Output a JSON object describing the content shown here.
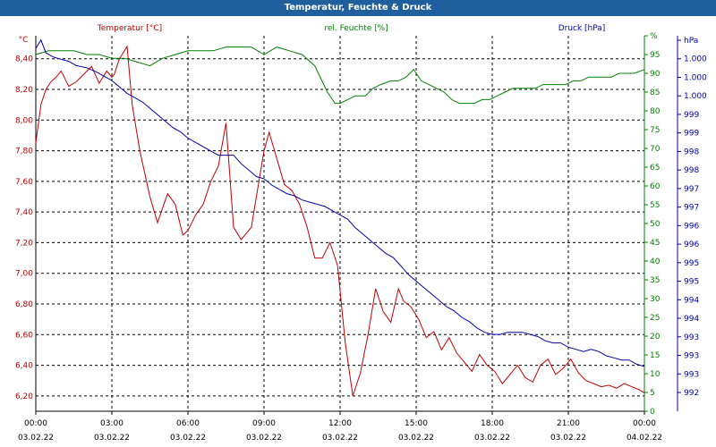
{
  "window": {
    "title": "Temperatur, Feuchte & Druck"
  },
  "colors": {
    "temperature": "#c00000",
    "humidity": "#008000",
    "pressure": "#0000b0",
    "title_bar": "#1f5f9e",
    "grid": "#000000"
  },
  "chart_data": {
    "type": "line",
    "grid": true,
    "legend": "top",
    "x_labels": [
      {
        "time": "00:00",
        "date": "03.02.22"
      },
      {
        "time": "03:00",
        "date": "03.02.22"
      },
      {
        "time": "06:00",
        "date": "03.02.22"
      },
      {
        "time": "09:00",
        "date": "03.02.22"
      },
      {
        "time": "12:00",
        "date": "03.02.22"
      },
      {
        "time": "15:00",
        "date": "03.02.22"
      },
      {
        "time": "18:00",
        "date": "03.02.22"
      },
      {
        "time": "21:00",
        "date": "03.02.22"
      },
      {
        "time": "00:00",
        "date": "04.02.22"
      }
    ],
    "xlim": [
      0,
      24
    ],
    "axes": {
      "temperature": {
        "label": "Temperatur [°C]",
        "unit": "°C",
        "min": 6.1,
        "max": 8.55,
        "ticks": [
          "6,20",
          "6,40",
          "6,60",
          "6,80",
          "7,00",
          "7,20",
          "7,40",
          "7,60",
          "7,80",
          "8,00",
          "8,20",
          "8,40"
        ]
      },
      "humidity": {
        "label": "rel. Feuchte [%]",
        "unit": "%",
        "min": 0,
        "max": 100,
        "ticks": [
          "0",
          "5",
          "10",
          "15",
          "20",
          "25",
          "30",
          "35",
          "40",
          "45",
          "50",
          "55",
          "60",
          "65",
          "70",
          "75",
          "80",
          "85",
          "90",
          "95",
          "%"
        ]
      },
      "pressure": {
        "label": "Druck [hPa]",
        "unit": "hPa",
        "ticks": [
          "992",
          "993",
          "993",
          "993",
          "994",
          "994",
          "995",
          "995",
          "996",
          "996",
          "997",
          "997",
          "998",
          "998",
          "999",
          "999",
          "1.000",
          "1.000",
          "1.000",
          "hPa"
        ]
      }
    },
    "series": [
      {
        "name": "Temperatur [°C]",
        "axis": "temperature",
        "x": [
          0,
          0.2,
          0.4,
          0.6,
          0.8,
          1.0,
          1.3,
          1.6,
          1.9,
          2.2,
          2.5,
          2.8,
          3.0,
          3.1,
          3.3,
          3.6,
          3.8,
          4.1,
          4.5,
          4.8,
          5.2,
          5.5,
          5.8,
          6.0,
          6.3,
          6.6,
          6.9,
          7.2,
          7.5,
          7.8,
          8.1,
          8.5,
          8.8,
          9.0,
          9.2,
          9.5,
          9.8,
          10.1,
          10.4,
          10.7,
          11.0,
          11.3,
          11.6,
          11.9,
          12.2,
          12.5,
          12.8,
          13.1,
          13.4,
          13.7,
          14.0,
          14.3,
          14.5,
          14.8,
          15.1,
          15.4,
          15.7,
          16.0,
          16.3,
          16.6,
          16.9,
          17.2,
          17.5,
          17.8,
          18.1,
          18.4,
          18.7,
          19.0,
          19.3,
          19.6,
          19.9,
          20.2,
          20.5,
          20.8,
          21.1,
          21.4,
          21.7,
          22.0,
          22.3,
          22.6,
          22.9,
          23.2,
          23.5,
          23.8,
          24.0
        ],
        "values": [
          7.85,
          8.1,
          8.2,
          8.25,
          8.28,
          8.32,
          8.22,
          8.25,
          8.3,
          8.35,
          8.24,
          8.32,
          8.28,
          8.3,
          8.4,
          8.48,
          8.1,
          7.8,
          7.5,
          7.33,
          7.52,
          7.45,
          7.25,
          7.28,
          7.38,
          7.45,
          7.6,
          7.7,
          7.98,
          7.3,
          7.22,
          7.3,
          7.6,
          7.8,
          7.92,
          7.75,
          7.58,
          7.54,
          7.45,
          7.3,
          7.1,
          7.1,
          7.2,
          7.05,
          6.55,
          6.2,
          6.35,
          6.6,
          6.9,
          6.75,
          6.68,
          6.9,
          6.82,
          6.78,
          6.7,
          6.58,
          6.62,
          6.5,
          6.58,
          6.48,
          6.42,
          6.36,
          6.47,
          6.4,
          6.36,
          6.28,
          6.34,
          6.4,
          6.32,
          6.29,
          6.4,
          6.44,
          6.34,
          6.38,
          6.44,
          6.35,
          6.3,
          6.28,
          6.26,
          6.27,
          6.25,
          6.28,
          6.26,
          6.24,
          6.22
        ]
      },
      {
        "name": "rel. Feuchte [%]",
        "axis": "humidity",
        "x": [
          0,
          0.5,
          1.0,
          1.5,
          2.0,
          2.5,
          3.0,
          3.5,
          4.0,
          4.5,
          5.0,
          5.5,
          6.0,
          6.5,
          7.0,
          7.5,
          8.0,
          8.5,
          9.0,
          9.5,
          10.0,
          10.5,
          11.0,
          11.5,
          11.8,
          12.0,
          12.3,
          12.6,
          13.0,
          13.3,
          13.6,
          14.0,
          14.3,
          14.6,
          14.9,
          15.2,
          15.5,
          15.8,
          16.1,
          16.4,
          16.7,
          17.0,
          17.3,
          17.6,
          17.9,
          18.2,
          18.5,
          18.8,
          19.1,
          19.4,
          19.7,
          20.0,
          20.3,
          20.6,
          20.9,
          21.2,
          21.5,
          21.8,
          22.1,
          22.4,
          22.7,
          23.0,
          23.3,
          23.6,
          24.0
        ],
        "values": [
          95,
          96,
          96,
          96,
          95,
          95,
          94,
          94,
          93,
          92,
          94,
          95,
          96,
          96,
          96,
          97,
          97,
          97,
          95,
          97,
          96,
          95,
          92,
          85,
          82,
          82,
          83,
          84,
          84,
          86,
          87,
          88,
          88,
          89,
          91,
          88,
          87,
          86,
          85,
          83,
          82,
          82,
          82,
          83,
          83,
          84,
          85,
          86,
          86,
          86,
          86,
          87,
          87,
          87,
          87,
          88,
          88,
          89,
          89,
          89,
          89,
          90,
          90,
          90,
          91
        ]
      },
      {
        "name": "Druck [hPa]",
        "axis": "pressure",
        "x": [
          0,
          0.2,
          0.4,
          0.7,
          1.0,
          1.3,
          1.6,
          2.0,
          2.4,
          2.7,
          3.0,
          3.3,
          3.6,
          3.9,
          4.2,
          4.5,
          4.8,
          5.1,
          5.4,
          5.7,
          6.0,
          6.3,
          6.6,
          6.9,
          7.2,
          7.5,
          7.8,
          8.1,
          8.4,
          8.7,
          9.0,
          9.3,
          9.6,
          9.9,
          10.2,
          10.5,
          10.8,
          11.1,
          11.4,
          11.7,
          12.0,
          12.3,
          12.6,
          12.9,
          13.2,
          13.5,
          13.8,
          14.1,
          14.4,
          14.7,
          15.0,
          15.3,
          15.6,
          15.9,
          16.2,
          16.5,
          16.8,
          17.1,
          17.4,
          17.7,
          18.0,
          18.3,
          18.6,
          18.9,
          19.2,
          19.5,
          19.8,
          20.1,
          20.4,
          20.7,
          21.0,
          21.3,
          21.6,
          21.9,
          22.2,
          22.5,
          22.8,
          23.1,
          23.4,
          23.7,
          24.0
        ],
        "values": [
          1000.4,
          1000.6,
          1000.3,
          1000.2,
          1000.15,
          1000.1,
          1000.0,
          999.95,
          999.85,
          999.75,
          999.65,
          999.5,
          999.35,
          999.25,
          999.15,
          999.0,
          998.85,
          998.7,
          998.55,
          998.45,
          998.3,
          998.2,
          998.1,
          998.0,
          997.9,
          997.9,
          997.9,
          997.7,
          997.55,
          997.4,
          997.35,
          997.2,
          997.1,
          997.0,
          996.95,
          996.85,
          996.8,
          996.75,
          996.7,
          996.6,
          996.5,
          996.4,
          996.2,
          996.05,
          995.9,
          995.75,
          995.6,
          995.5,
          995.3,
          995.1,
          994.95,
          994.8,
          994.65,
          994.5,
          994.35,
          994.25,
          994.1,
          994.0,
          993.85,
          993.75,
          993.7,
          993.7,
          993.75,
          993.75,
          993.75,
          993.7,
          993.65,
          993.55,
          993.5,
          993.5,
          993.4,
          993.35,
          993.3,
          993.35,
          993.3,
          993.2,
          993.15,
          993.1,
          993.1,
          993.0,
          992.95
        ]
      }
    ]
  }
}
